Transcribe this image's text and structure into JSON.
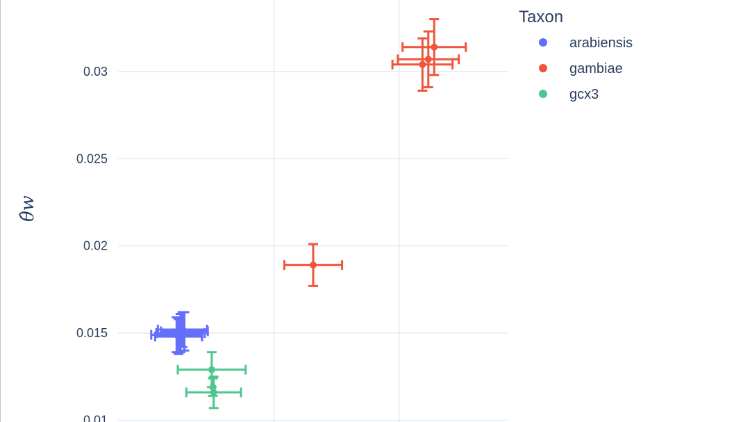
{
  "chart_data": {
    "type": "scatter",
    "title": "",
    "xlabel": "",
    "ylabel": "θ̂w",
    "ylim": [
      0.0099,
      0.0341
    ],
    "xlim": [
      0,
      1
    ],
    "y_ticks": [
      "0.01",
      "0.015",
      "0.02",
      "0.025",
      "0.03"
    ],
    "y_tick_values": [
      0.01,
      0.015,
      0.02,
      0.025,
      0.03
    ],
    "x_grid_values": [
      0.4,
      0.72
    ],
    "x_tick_labels_visible": false,
    "grid": true,
    "legend": {
      "title": "Taxon",
      "placement": "top-right",
      "entries": [
        {
          "label": "arabiensis",
          "color": "#636efa"
        },
        {
          "label": "gambiae",
          "color": "#ef553b"
        },
        {
          "label": "gcx3",
          "color": "#4fc68f"
        }
      ]
    },
    "series": [
      {
        "name": "arabiensis",
        "color": "#636efa",
        "points": [
          {
            "x": 0.15,
            "y": 0.0149,
            "xerr": 0.065,
            "yerr": 0.001
          },
          {
            "x": 0.16,
            "y": 0.015,
            "xerr": 0.062,
            "yerr": 0.0011
          },
          {
            "x": 0.17,
            "y": 0.0151,
            "xerr": 0.06,
            "yerr": 0.0011
          },
          {
            "x": 0.155,
            "y": 0.0148,
            "xerr": 0.06,
            "yerr": 0.001
          },
          {
            "x": 0.165,
            "y": 0.0152,
            "xerr": 0.063,
            "yerr": 0.001
          }
        ]
      },
      {
        "name": "gambiae",
        "color": "#ef553b",
        "points": [
          {
            "x": 0.5,
            "y": 0.0189,
            "xerr": 0.074,
            "yerr": 0.0012
          },
          {
            "x": 0.78,
            "y": 0.0304,
            "xerr": 0.077,
            "yerr": 0.0015
          },
          {
            "x": 0.795,
            "y": 0.0307,
            "xerr": 0.078,
            "yerr": 0.0016
          },
          {
            "x": 0.81,
            "y": 0.0314,
            "xerr": 0.081,
            "yerr": 0.0016
          }
        ]
      },
      {
        "name": "gcx3",
        "color": "#4fc68f",
        "points": [
          {
            "x": 0.24,
            "y": 0.0129,
            "xerr": 0.087,
            "yerr": 0.001
          },
          {
            "x": 0.245,
            "y": 0.0116,
            "xerr": 0.07,
            "yerr": 0.0009
          },
          {
            "x": 0.243,
            "y": 0.0119,
            "xerr": 0.0,
            "yerr": 0.0005
          }
        ]
      }
    ]
  }
}
